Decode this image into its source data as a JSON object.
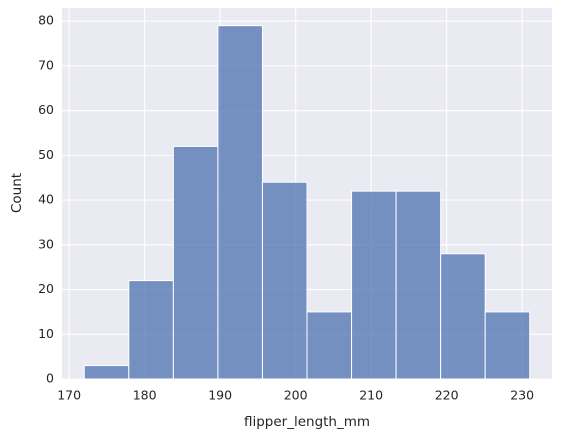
{
  "chart_data": {
    "type": "histogram",
    "xlabel": "flipper_length_mm",
    "ylabel": "Count",
    "bins": [
      172,
      177.9,
      183.8,
      189.7,
      195.6,
      201.5,
      207.4,
      213.3,
      219.2,
      225.1,
      231
    ],
    "values": [
      3,
      22,
      52,
      79,
      44,
      15,
      42,
      42,
      28,
      15
    ],
    "color": "#4c72b0",
    "xlim": [
      169.05,
      233.95
    ],
    "xticks": [
      170,
      180,
      190,
      200,
      210,
      220,
      230
    ],
    "ylim": [
      0,
      82.95
    ],
    "yticks": [
      0,
      10,
      20,
      30,
      40,
      50,
      60,
      70,
      80
    ],
    "grid": true
  }
}
